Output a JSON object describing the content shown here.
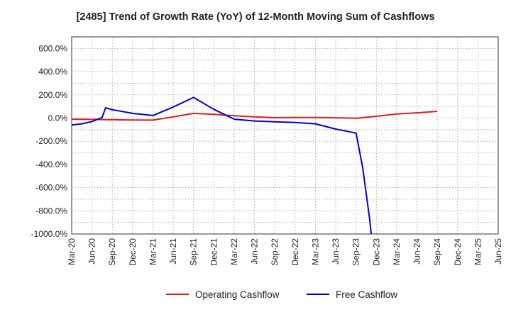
{
  "chart_data": {
    "type": "line",
    "title": "[2485]  Trend of Growth Rate (YoY) of 12-Month Moving Sum of Cashflows",
    "xlabel": "",
    "ylabel": "",
    "x": [
      "Mar-20",
      "Jun-20",
      "Sep-20",
      "Dec-20",
      "Mar-21",
      "Jun-21",
      "Sep-21",
      "Dec-21",
      "Mar-22",
      "Jun-22",
      "Sep-22",
      "Dec-22",
      "Mar-23",
      "Jun-23",
      "Sep-23",
      "Dec-23",
      "Mar-24",
      "Jun-24",
      "Sep-24",
      "Dec-24",
      "Mar-25",
      "Jun-25"
    ],
    "ylim": [
      -1000,
      700
    ],
    "yticks": [
      600,
      400,
      200,
      0,
      -200,
      -400,
      -600,
      -800,
      -1000
    ],
    "ytick_labels": [
      "600.0%",
      "400.0%",
      "200.0%",
      "0.0%",
      "-200.0%",
      "-400.0%",
      "-600.0%",
      "-800.0%",
      "-1000.0%"
    ],
    "grid": true,
    "legend_position": "bottom",
    "series": [
      {
        "name": "Operating Cashflow",
        "color": "#e31a1c",
        "points": [
          [
            0,
            -10
          ],
          [
            1,
            -12
          ],
          [
            2,
            -15
          ],
          [
            3,
            -17
          ],
          [
            4,
            -18
          ],
          [
            5,
            10
          ],
          [
            6,
            40
          ],
          [
            7,
            32
          ],
          [
            8,
            20
          ],
          [
            9,
            10
          ],
          [
            10,
            3
          ],
          [
            11,
            5
          ],
          [
            12,
            5
          ],
          [
            13,
            2
          ],
          [
            14,
            -2
          ],
          [
            15,
            15
          ],
          [
            16,
            35
          ],
          [
            17,
            45
          ],
          [
            18,
            58
          ]
        ]
      },
      {
        "name": "Free Cashflow",
        "color": "#0000cc",
        "points": [
          [
            0,
            -60
          ],
          [
            0.5,
            -50
          ],
          [
            1,
            -30
          ],
          [
            1.5,
            5
          ],
          [
            1.67,
            88
          ],
          [
            2,
            72
          ],
          [
            3,
            40
          ],
          [
            4,
            22
          ],
          [
            5,
            95
          ],
          [
            6,
            178
          ],
          [
            7,
            75
          ],
          [
            8,
            -10
          ],
          [
            9,
            -25
          ],
          [
            10,
            -32
          ],
          [
            11,
            -38
          ],
          [
            12,
            -50
          ],
          [
            13,
            -95
          ],
          [
            14,
            -130
          ],
          [
            14.33,
            -430
          ],
          [
            14.67,
            -870
          ],
          [
            14.75,
            -1000
          ]
        ]
      }
    ]
  }
}
